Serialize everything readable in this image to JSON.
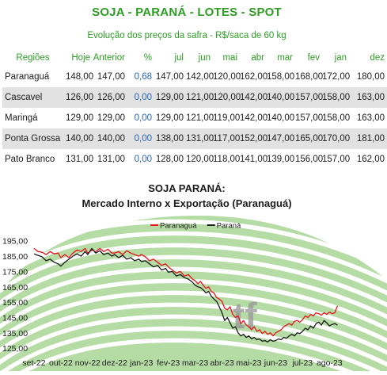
{
  "header": {
    "title": "SOJA - PARANÁ - LOTES - SPOT",
    "subtitle": "Evolução dos preços da safra - R$/saca de 60 kg"
  },
  "table": {
    "headers": [
      "Regiões",
      "Hoje",
      "Anterior",
      "%",
      "jul",
      "jun",
      "mai",
      "abr",
      "mar",
      "fev",
      "jan",
      "dez"
    ],
    "rows": [
      {
        "region": "Paranaguá",
        "hoje": "148,00",
        "anterior": "147,00",
        "pct": "0,68",
        "months": [
          "147,00",
          "142,00",
          "120,00",
          "162,00",
          "158,00",
          "168,00",
          "172,00",
          "180,00"
        ]
      },
      {
        "region": "Cascavel",
        "hoje": "126,00",
        "anterior": "126,00",
        "pct": "0,00",
        "months": [
          "129,00",
          "121,00",
          "120,00",
          "142,00",
          "140,00",
          "157,00",
          "158,00",
          "163,00"
        ]
      },
      {
        "region": "Maringá",
        "hoje": "129,00",
        "anterior": "129,00",
        "pct": "0,00",
        "months": [
          "129,00",
          "121,00",
          "119,00",
          "142,00",
          "140,00",
          "157,00",
          "158,00",
          "163,00"
        ]
      },
      {
        "region": "Ponta Grossa",
        "hoje": "140,00",
        "anterior": "140,00",
        "pct": "0,00",
        "months": [
          "138,00",
          "131,00",
          "117,00",
          "152,00",
          "147,00",
          "165,00",
          "170,00",
          "181,00"
        ]
      },
      {
        "region": "Pato Branco",
        "hoje": "131,00",
        "anterior": "131,00",
        "pct": "0,00",
        "months": [
          "128,00",
          "120,00",
          "118,00",
          "141,00",
          "139,00",
          "156,00",
          "157,00",
          "162,00"
        ]
      }
    ]
  },
  "chart_data": {
    "type": "line",
    "title_lines": [
      "SOJA PARANÁ:",
      "Mercado Interno x Exportação (Paranaguá)"
    ],
    "x_ticks": [
      "set-22",
      "out-22",
      "nov-22",
      "dez-22",
      "jan-23",
      "fev-23",
      "mar-23",
      "abr-23",
      "mai-23",
      "jun-23",
      "jul-23",
      "ago-23"
    ],
    "y_ticks": [
      125,
      135,
      145,
      155,
      165,
      175,
      185,
      195
    ],
    "ylim": [
      123,
      199
    ],
    "xlim": [
      0,
      11.7
    ],
    "legend_position": "top-center",
    "watermark": "tf",
    "series": [
      {
        "name": "Paranaguá",
        "color": "#e8141b",
        "points": [
          [
            0.0,
            190
          ],
          [
            0.15,
            188
          ],
          [
            0.3,
            187.5
          ],
          [
            0.45,
            186
          ],
          [
            0.6,
            188
          ],
          [
            0.75,
            186.5
          ],
          [
            0.9,
            187
          ],
          [
            1.0,
            184
          ],
          [
            1.15,
            186
          ],
          [
            1.3,
            184
          ],
          [
            1.45,
            187
          ],
          [
            1.6,
            189
          ],
          [
            1.75,
            188
          ],
          [
            1.9,
            190
          ],
          [
            2.0,
            187
          ],
          [
            2.15,
            189
          ],
          [
            2.3,
            188
          ],
          [
            2.45,
            190
          ],
          [
            2.6,
            188
          ],
          [
            2.75,
            189.5
          ],
          [
            2.9,
            187
          ],
          [
            3.0,
            187
          ],
          [
            3.15,
            188
          ],
          [
            3.3,
            186
          ],
          [
            3.45,
            188.5
          ],
          [
            3.6,
            187
          ],
          [
            3.75,
            186
          ],
          [
            3.9,
            185
          ],
          [
            4.0,
            186
          ],
          [
            4.15,
            184.5
          ],
          [
            4.3,
            182
          ],
          [
            4.45,
            183
          ],
          [
            4.6,
            181
          ],
          [
            4.75,
            179
          ],
          [
            4.9,
            180
          ],
          [
            5.0,
            178
          ],
          [
            5.15,
            176
          ],
          [
            5.3,
            174
          ],
          [
            5.45,
            175
          ],
          [
            5.6,
            172
          ],
          [
            5.75,
            173
          ],
          [
            5.9,
            170
          ],
          [
            6.0,
            169
          ],
          [
            6.1,
            167
          ],
          [
            6.2,
            168.5
          ],
          [
            6.3,
            166
          ],
          [
            6.4,
            164
          ],
          [
            6.5,
            165
          ],
          [
            6.6,
            162
          ],
          [
            6.7,
            161
          ],
          [
            6.8,
            158
          ],
          [
            6.9,
            157
          ],
          [
            7.0,
            155.5
          ],
          [
            7.1,
            151
          ],
          [
            7.2,
            150
          ],
          [
            7.3,
            152
          ],
          [
            7.4,
            147
          ],
          [
            7.5,
            145
          ],
          [
            7.6,
            146
          ],
          [
            7.7,
            141
          ],
          [
            7.8,
            143
          ],
          [
            7.9,
            140
          ],
          [
            8.0,
            139
          ],
          [
            8.1,
            137
          ],
          [
            8.2,
            139
          ],
          [
            8.3,
            136
          ],
          [
            8.4,
            137
          ],
          [
            8.5,
            134.5
          ],
          [
            8.6,
            136
          ],
          [
            8.7,
            134
          ],
          [
            8.8,
            135
          ],
          [
            8.9,
            133
          ],
          [
            9.0,
            135
          ],
          [
            9.1,
            136
          ],
          [
            9.2,
            137
          ],
          [
            9.3,
            139
          ],
          [
            9.4,
            140
          ],
          [
            9.5,
            141
          ],
          [
            9.6,
            140
          ],
          [
            9.7,
            142.5
          ],
          [
            9.8,
            143
          ],
          [
            9.9,
            142
          ],
          [
            10.0,
            143.5
          ],
          [
            10.1,
            146
          ],
          [
            10.2,
            145
          ],
          [
            10.3,
            147
          ],
          [
            10.4,
            146
          ],
          [
            10.5,
            148
          ],
          [
            10.6,
            147.5
          ],
          [
            10.7,
            146.5
          ],
          [
            10.8,
            148
          ],
          [
            10.9,
            147
          ],
          [
            11.0,
            148.5
          ],
          [
            11.1,
            147.5
          ],
          [
            11.2,
            148
          ],
          [
            11.3,
            152.5
          ]
        ]
      },
      {
        "name": "Paraná",
        "color": "#1a1a1a",
        "points": [
          [
            0.0,
            186.5
          ],
          [
            0.15,
            185.5
          ],
          [
            0.3,
            184.5
          ],
          [
            0.45,
            182
          ],
          [
            0.6,
            183
          ],
          [
            0.75,
            181
          ],
          [
            0.9,
            180
          ],
          [
            1.0,
            178.5
          ],
          [
            1.15,
            181
          ],
          [
            1.3,
            183
          ],
          [
            1.45,
            185
          ],
          [
            1.6,
            186.5
          ],
          [
            1.75,
            185
          ],
          [
            1.9,
            188
          ],
          [
            2.0,
            186
          ],
          [
            2.15,
            190
          ],
          [
            2.3,
            187
          ],
          [
            2.45,
            188.5
          ],
          [
            2.6,
            186
          ],
          [
            2.75,
            187
          ],
          [
            2.9,
            185
          ],
          [
            3.0,
            186
          ],
          [
            3.15,
            184
          ],
          [
            3.3,
            185.5
          ],
          [
            3.45,
            183
          ],
          [
            3.6,
            184
          ],
          [
            3.75,
            182
          ],
          [
            3.9,
            183
          ],
          [
            4.0,
            181.5
          ],
          [
            4.15,
            182
          ],
          [
            4.3,
            180
          ],
          [
            4.45,
            178
          ],
          [
            4.6,
            179
          ],
          [
            4.75,
            176
          ],
          [
            4.9,
            177
          ],
          [
            5.0,
            174.5
          ],
          [
            5.15,
            175
          ],
          [
            5.3,
            172
          ],
          [
            5.45,
            173
          ],
          [
            5.6,
            171
          ],
          [
            5.75,
            170
          ],
          [
            5.9,
            168
          ],
          [
            6.0,
            166
          ],
          [
            6.1,
            165
          ],
          [
            6.2,
            164.5
          ],
          [
            6.3,
            163
          ],
          [
            6.4,
            161
          ],
          [
            6.5,
            162
          ],
          [
            6.6,
            159
          ],
          [
            6.7,
            157
          ],
          [
            6.8,
            155.5
          ],
          [
            6.9,
            152
          ],
          [
            7.0,
            148
          ],
          [
            7.1,
            143
          ],
          [
            7.2,
            145
          ],
          [
            7.3,
            141.5
          ],
          [
            7.4,
            138
          ],
          [
            7.5,
            139
          ],
          [
            7.6,
            135
          ],
          [
            7.7,
            133
          ],
          [
            7.8,
            134
          ],
          [
            7.9,
            132
          ],
          [
            8.0,
            133
          ],
          [
            8.1,
            131
          ],
          [
            8.2,
            132
          ],
          [
            8.3,
            130.5
          ],
          [
            8.4,
            131
          ],
          [
            8.5,
            129.5
          ],
          [
            8.6,
            130
          ],
          [
            8.7,
            129
          ],
          [
            8.8,
            130.5
          ],
          [
            8.9,
            129.5
          ],
          [
            9.0,
            130
          ],
          [
            9.1,
            131
          ],
          [
            9.2,
            130.5
          ],
          [
            9.3,
            132
          ],
          [
            9.4,
            131.5
          ],
          [
            9.5,
            133
          ],
          [
            9.6,
            134
          ],
          [
            9.7,
            133
          ],
          [
            9.8,
            135
          ],
          [
            9.9,
            134.5
          ],
          [
            10.0,
            136
          ],
          [
            10.1,
            138
          ],
          [
            10.2,
            137
          ],
          [
            10.3,
            139.5
          ],
          [
            10.4,
            138
          ],
          [
            10.5,
            141
          ],
          [
            10.6,
            142
          ],
          [
            10.7,
            140
          ],
          [
            10.8,
            143
          ],
          [
            10.9,
            141.5
          ],
          [
            11.0,
            139.5
          ],
          [
            11.1,
            140.5
          ],
          [
            11.2,
            141
          ],
          [
            11.3,
            140
          ]
        ]
      }
    ]
  }
}
